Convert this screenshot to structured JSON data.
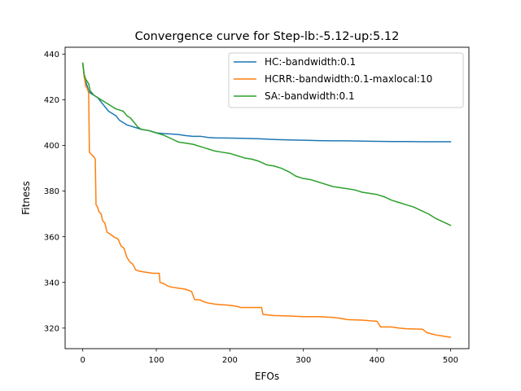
{
  "chart_data": {
    "type": "line",
    "title": "Convergence curve for Step-lb:-5.12-up:5.12",
    "xlabel": "EFOs",
    "ylabel": "Fitness",
    "xlim": [
      -24,
      525
    ],
    "ylim": [
      311,
      443
    ],
    "xticks": [
      0,
      100,
      200,
      300,
      400,
      500
    ],
    "yticks": [
      320,
      340,
      360,
      380,
      400,
      420,
      440
    ],
    "grid": false,
    "legend_position": "top-right",
    "series": [
      {
        "name": "HC:-bandwidth:0.1",
        "color": "#1f77b4",
        "points": [
          [
            0,
            436
          ],
          [
            2,
            430
          ],
          [
            4,
            428
          ],
          [
            6,
            426
          ],
          [
            8,
            424
          ],
          [
            10,
            423
          ],
          [
            15,
            422
          ],
          [
            20,
            421
          ],
          [
            25,
            419
          ],
          [
            30,
            417
          ],
          [
            35,
            415
          ],
          [
            40,
            414
          ],
          [
            45,
            413
          ],
          [
            50,
            411
          ],
          [
            55,
            410
          ],
          [
            60,
            409
          ],
          [
            65,
            408.5
          ],
          [
            70,
            408
          ],
          [
            75,
            407.5
          ],
          [
            80,
            407
          ],
          [
            90,
            406.5
          ],
          [
            100,
            405.5
          ],
          [
            110,
            405.2
          ],
          [
            120,
            405
          ],
          [
            130,
            404.8
          ],
          [
            140,
            404.3
          ],
          [
            150,
            404
          ],
          [
            160,
            404
          ],
          [
            170,
            403.5
          ],
          [
            180,
            403.3
          ],
          [
            200,
            403.2
          ],
          [
            220,
            403.1
          ],
          [
            240,
            402.9
          ],
          [
            260,
            402.6
          ],
          [
            280,
            402.4
          ],
          [
            300,
            402.3
          ],
          [
            320,
            402.1
          ],
          [
            340,
            402
          ],
          [
            360,
            402
          ],
          [
            380,
            401.9
          ],
          [
            400,
            401.8
          ],
          [
            420,
            401.7
          ],
          [
            440,
            401.7
          ],
          [
            460,
            401.6
          ],
          [
            480,
            401.6
          ],
          [
            500,
            401.6
          ]
        ]
      },
      {
        "name": "HCRR:-bandwidth:0.1-maxlocal:10",
        "color": "#ff7f0e",
        "points": [
          [
            0,
            436
          ],
          [
            2,
            430
          ],
          [
            4,
            426
          ],
          [
            6,
            425
          ],
          [
            8,
            423
          ],
          [
            9,
            397
          ],
          [
            12,
            396
          ],
          [
            15,
            395
          ],
          [
            17,
            394
          ],
          [
            18,
            374
          ],
          [
            20,
            373
          ],
          [
            22,
            371
          ],
          [
            25,
            370
          ],
          [
            27,
            367
          ],
          [
            30,
            366
          ],
          [
            33,
            362
          ],
          [
            38,
            361
          ],
          [
            42,
            360
          ],
          [
            48,
            359
          ],
          [
            52,
            356
          ],
          [
            56,
            355
          ],
          [
            60,
            351
          ],
          [
            64,
            349
          ],
          [
            68,
            348
          ],
          [
            72,
            345.5
          ],
          [
            76,
            345
          ],
          [
            85,
            344.5
          ],
          [
            95,
            344
          ],
          [
            104,
            344
          ],
          [
            105,
            340
          ],
          [
            110,
            339.5
          ],
          [
            115,
            338.5
          ],
          [
            120,
            338
          ],
          [
            130,
            337.5
          ],
          [
            140,
            337
          ],
          [
            148,
            336
          ],
          [
            152,
            332.5
          ],
          [
            160,
            332.3
          ],
          [
            165,
            331.5
          ],
          [
            170,
            331
          ],
          [
            180,
            330.5
          ],
          [
            190,
            330.2
          ],
          [
            200,
            330
          ],
          [
            210,
            329.5
          ],
          [
            215,
            329
          ],
          [
            243,
            329
          ],
          [
            245,
            326
          ],
          [
            260,
            325.5
          ],
          [
            280,
            325.3
          ],
          [
            300,
            325
          ],
          [
            320,
            325
          ],
          [
            340,
            324.7
          ],
          [
            350,
            324.3
          ],
          [
            360,
            323.7
          ],
          [
            380,
            323.5
          ],
          [
            390,
            323.2
          ],
          [
            400,
            323
          ],
          [
            405,
            320.5
          ],
          [
            420,
            320.5
          ],
          [
            430,
            320
          ],
          [
            440,
            319.7
          ],
          [
            460,
            319.5
          ],
          [
            462,
            319.5
          ],
          [
            468,
            318
          ],
          [
            476,
            317.3
          ],
          [
            480,
            317
          ],
          [
            490,
            316.5
          ],
          [
            500,
            316
          ]
        ]
      },
      {
        "name": "SA:-bandwidth:0.1",
        "color": "#2ca02c",
        "points": [
          [
            0,
            436
          ],
          [
            2,
            431
          ],
          [
            4,
            429
          ],
          [
            6,
            428
          ],
          [
            8,
            427
          ],
          [
            10,
            424
          ],
          [
            15,
            422
          ],
          [
            20,
            421
          ],
          [
            25,
            420
          ],
          [
            30,
            419
          ],
          [
            35,
            418
          ],
          [
            40,
            417
          ],
          [
            45,
            416
          ],
          [
            50,
            415.5
          ],
          [
            55,
            415
          ],
          [
            60,
            413
          ],
          [
            65,
            412
          ],
          [
            70,
            410
          ],
          [
            75,
            408
          ],
          [
            80,
            407
          ],
          [
            90,
            406.5
          ],
          [
            100,
            405.5
          ],
          [
            110,
            404.5
          ],
          [
            120,
            403
          ],
          [
            130,
            401.5
          ],
          [
            140,
            401
          ],
          [
            150,
            400.5
          ],
          [
            160,
            399.5
          ],
          [
            170,
            398.5
          ],
          [
            180,
            397.5
          ],
          [
            190,
            397
          ],
          [
            200,
            396.5
          ],
          [
            210,
            395.5
          ],
          [
            220,
            394.5
          ],
          [
            230,
            394
          ],
          [
            240,
            393
          ],
          [
            250,
            391.5
          ],
          [
            260,
            391
          ],
          [
            270,
            390
          ],
          [
            280,
            388.5
          ],
          [
            290,
            386.5
          ],
          [
            300,
            385.5
          ],
          [
            310,
            385
          ],
          [
            320,
            384
          ],
          [
            330,
            383
          ],
          [
            340,
            382
          ],
          [
            350,
            381.5
          ],
          [
            360,
            381
          ],
          [
            370,
            380.5
          ],
          [
            380,
            379.5
          ],
          [
            390,
            379
          ],
          [
            400,
            378.5
          ],
          [
            410,
            377.5
          ],
          [
            420,
            376
          ],
          [
            430,
            375
          ],
          [
            440,
            374
          ],
          [
            450,
            373
          ],
          [
            460,
            371.5
          ],
          [
            470,
            370
          ],
          [
            480,
            368
          ],
          [
            490,
            366.5
          ],
          [
            500,
            365
          ]
        ]
      }
    ]
  }
}
